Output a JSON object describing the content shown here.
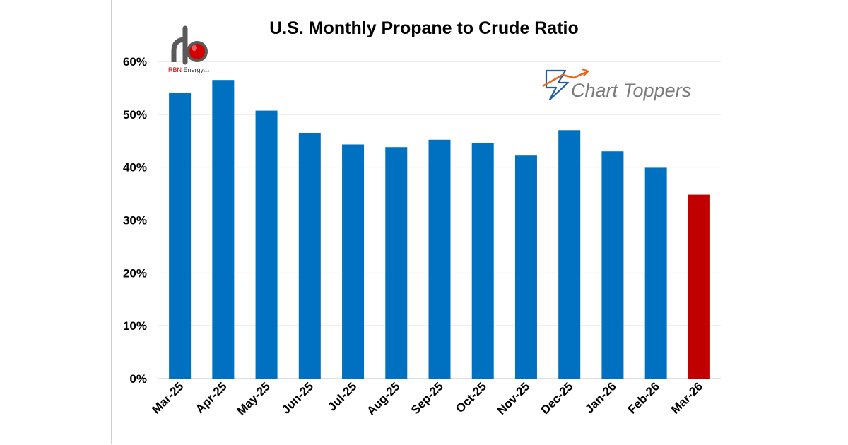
{
  "logos": {
    "rbn": {
      "text_red": "RBN",
      "text_rest": " Energy",
      "suffix": "LLC"
    },
    "charttoppers": {
      "text": "Chart Toppers"
    }
  },
  "colors": {
    "bar": "#0070c0",
    "highlight_bar": "#c00000",
    "grid": "#d9d9d9",
    "axis": "#bfbfbf"
  },
  "chart_data": {
    "type": "bar",
    "title": "U.S. Monthly Propane to Crude Ratio",
    "xlabel": "",
    "ylabel": "",
    "categories": [
      "Mar-25",
      "Apr-25",
      "May-25",
      "Jun-25",
      "Jul-25",
      "Aug-25",
      "Sep-25",
      "Oct-25",
      "Nov-25",
      "Dec-25",
      "Jan-26",
      "Feb-26",
      "Mar-26"
    ],
    "values": [
      0.54,
      0.565,
      0.507,
      0.465,
      0.443,
      0.438,
      0.452,
      0.446,
      0.422,
      0.47,
      0.43,
      0.399,
      0.348
    ],
    "highlight_index": 12,
    "ylim": [
      0,
      0.6
    ],
    "yticks": [
      0,
      0.1,
      0.2,
      0.3,
      0.4,
      0.5,
      0.6
    ],
    "ytick_labels": [
      "0%",
      "10%",
      "20%",
      "30%",
      "40%",
      "50%",
      "60%"
    ],
    "grid": true,
    "legend": "none"
  }
}
